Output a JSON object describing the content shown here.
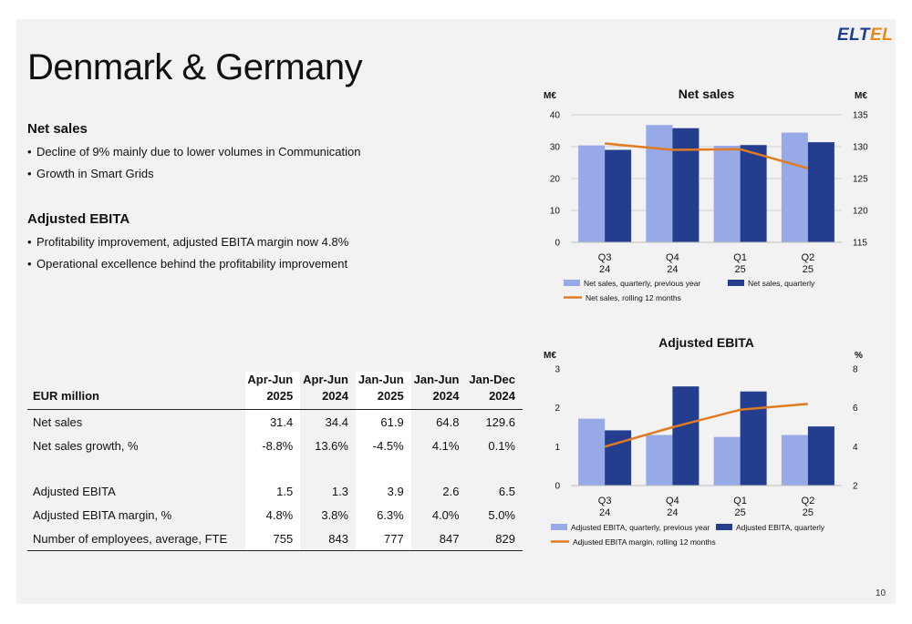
{
  "logo": {
    "text_main": "ELT",
    "text_accent": "EL"
  },
  "title": "Denmark & Germany",
  "net_sales_section": {
    "heading": "Net sales",
    "bullets": [
      "Decline of 9% mainly due to lower volumes in Communication",
      "Growth in Smart Grids"
    ]
  },
  "ebita_section": {
    "heading": "Adjusted EBITA",
    "bullets": [
      "Profitability improvement, adjusted EBITA margin now 4.8%",
      "Operational excellence behind the profitability improvement"
    ]
  },
  "table": {
    "corner": "EUR million",
    "columns": [
      {
        "line1": "Apr-Jun",
        "line2": "2025"
      },
      {
        "line1": "Apr-Jun",
        "line2": "2024"
      },
      {
        "line1": "Jan-Jun",
        "line2": "2025"
      },
      {
        "line1": "Jan-Jun",
        "line2": "2024"
      },
      {
        "line1": "Jan-Dec",
        "line2": "2024"
      }
    ],
    "rows": [
      {
        "label": "Net sales",
        "values": [
          "31.4",
          "34.4",
          "61.9",
          "64.8",
          "129.6"
        ]
      },
      {
        "label": "Net sales growth, %",
        "values": [
          "-8.8%",
          "13.6%",
          "-4.5%",
          "4.1%",
          "0.1%"
        ]
      },
      {
        "label": "",
        "values": [
          "",
          "",
          "",
          "",
          ""
        ]
      },
      {
        "label": "Adjusted EBITA",
        "values": [
          "1.5",
          "1.3",
          "3.9",
          "2.6",
          "6.5"
        ]
      },
      {
        "label": "Adjusted EBITA margin, %",
        "values": [
          "4.8%",
          "3.8%",
          "6.3%",
          "4.0%",
          "5.0%"
        ]
      },
      {
        "label": "Number of employees, average, FTE",
        "values": [
          "755",
          "843",
          "777",
          "847",
          "829"
        ]
      }
    ]
  },
  "page_number": "10",
  "colors": {
    "light_bar": "#97a9e6",
    "dark_bar": "#233d8f",
    "line": "#e07b22",
    "slide_bg": "#f2f2f2"
  },
  "chart_data": [
    {
      "type": "bar",
      "title": "Net sales",
      "ylabel": "M€",
      "y2label": "M€",
      "categories": [
        [
          "Q3",
          "24"
        ],
        [
          "Q4",
          "24"
        ],
        [
          "Q1",
          "25"
        ],
        [
          "Q2",
          "25"
        ]
      ],
      "ylim": [
        0,
        40
      ],
      "yticks": [
        0,
        10,
        20,
        30,
        40
      ],
      "y2lim": [
        115,
        135
      ],
      "y2ticks": [
        115,
        120,
        125,
        130,
        135
      ],
      "series": [
        {
          "name": "Net sales, quarterly, previous year",
          "kind": "bar",
          "color": "#97a9e6",
          "values": [
            30.4,
            36.8,
            30.3,
            34.4
          ]
        },
        {
          "name": "Net sales, quarterly",
          "kind": "bar",
          "color": "#233d8f",
          "values": [
            29.0,
            35.8,
            30.5,
            31.4
          ]
        },
        {
          "name": "Net sales, rolling 12 months",
          "kind": "line",
          "axis": "y2",
          "color": "#e07b22",
          "values": [
            130.5,
            129.5,
            129.6,
            126.6
          ]
        }
      ],
      "grid": true,
      "legend": "bottom"
    },
    {
      "type": "bar",
      "title": "Adjusted EBITA",
      "ylabel": "M€",
      "y2label": "%",
      "categories": [
        [
          "Q3",
          "24"
        ],
        [
          "Q4",
          "24"
        ],
        [
          "Q1",
          "25"
        ],
        [
          "Q2",
          "25"
        ]
      ],
      "ylim": [
        0,
        3
      ],
      "yticks": [
        0,
        1,
        2,
        3
      ],
      "y2lim": [
        2,
        8
      ],
      "y2ticks": [
        2,
        4,
        6,
        8
      ],
      "series": [
        {
          "name": "Adjusted EBITA, quarterly, previous year",
          "kind": "bar",
          "color": "#97a9e6",
          "values": [
            1.72,
            1.3,
            1.25,
            1.3
          ]
        },
        {
          "name": "Adjusted EBITA, quarterly",
          "kind": "bar",
          "color": "#233d8f",
          "values": [
            1.42,
            2.55,
            2.42,
            1.52
          ]
        },
        {
          "name": "Adjusted EBITA margin, rolling 12 months",
          "kind": "line",
          "axis": "y2",
          "color": "#e07b22",
          "values": [
            4.0,
            5.0,
            5.9,
            6.2
          ]
        }
      ],
      "grid": false,
      "legend": "bottom"
    }
  ]
}
